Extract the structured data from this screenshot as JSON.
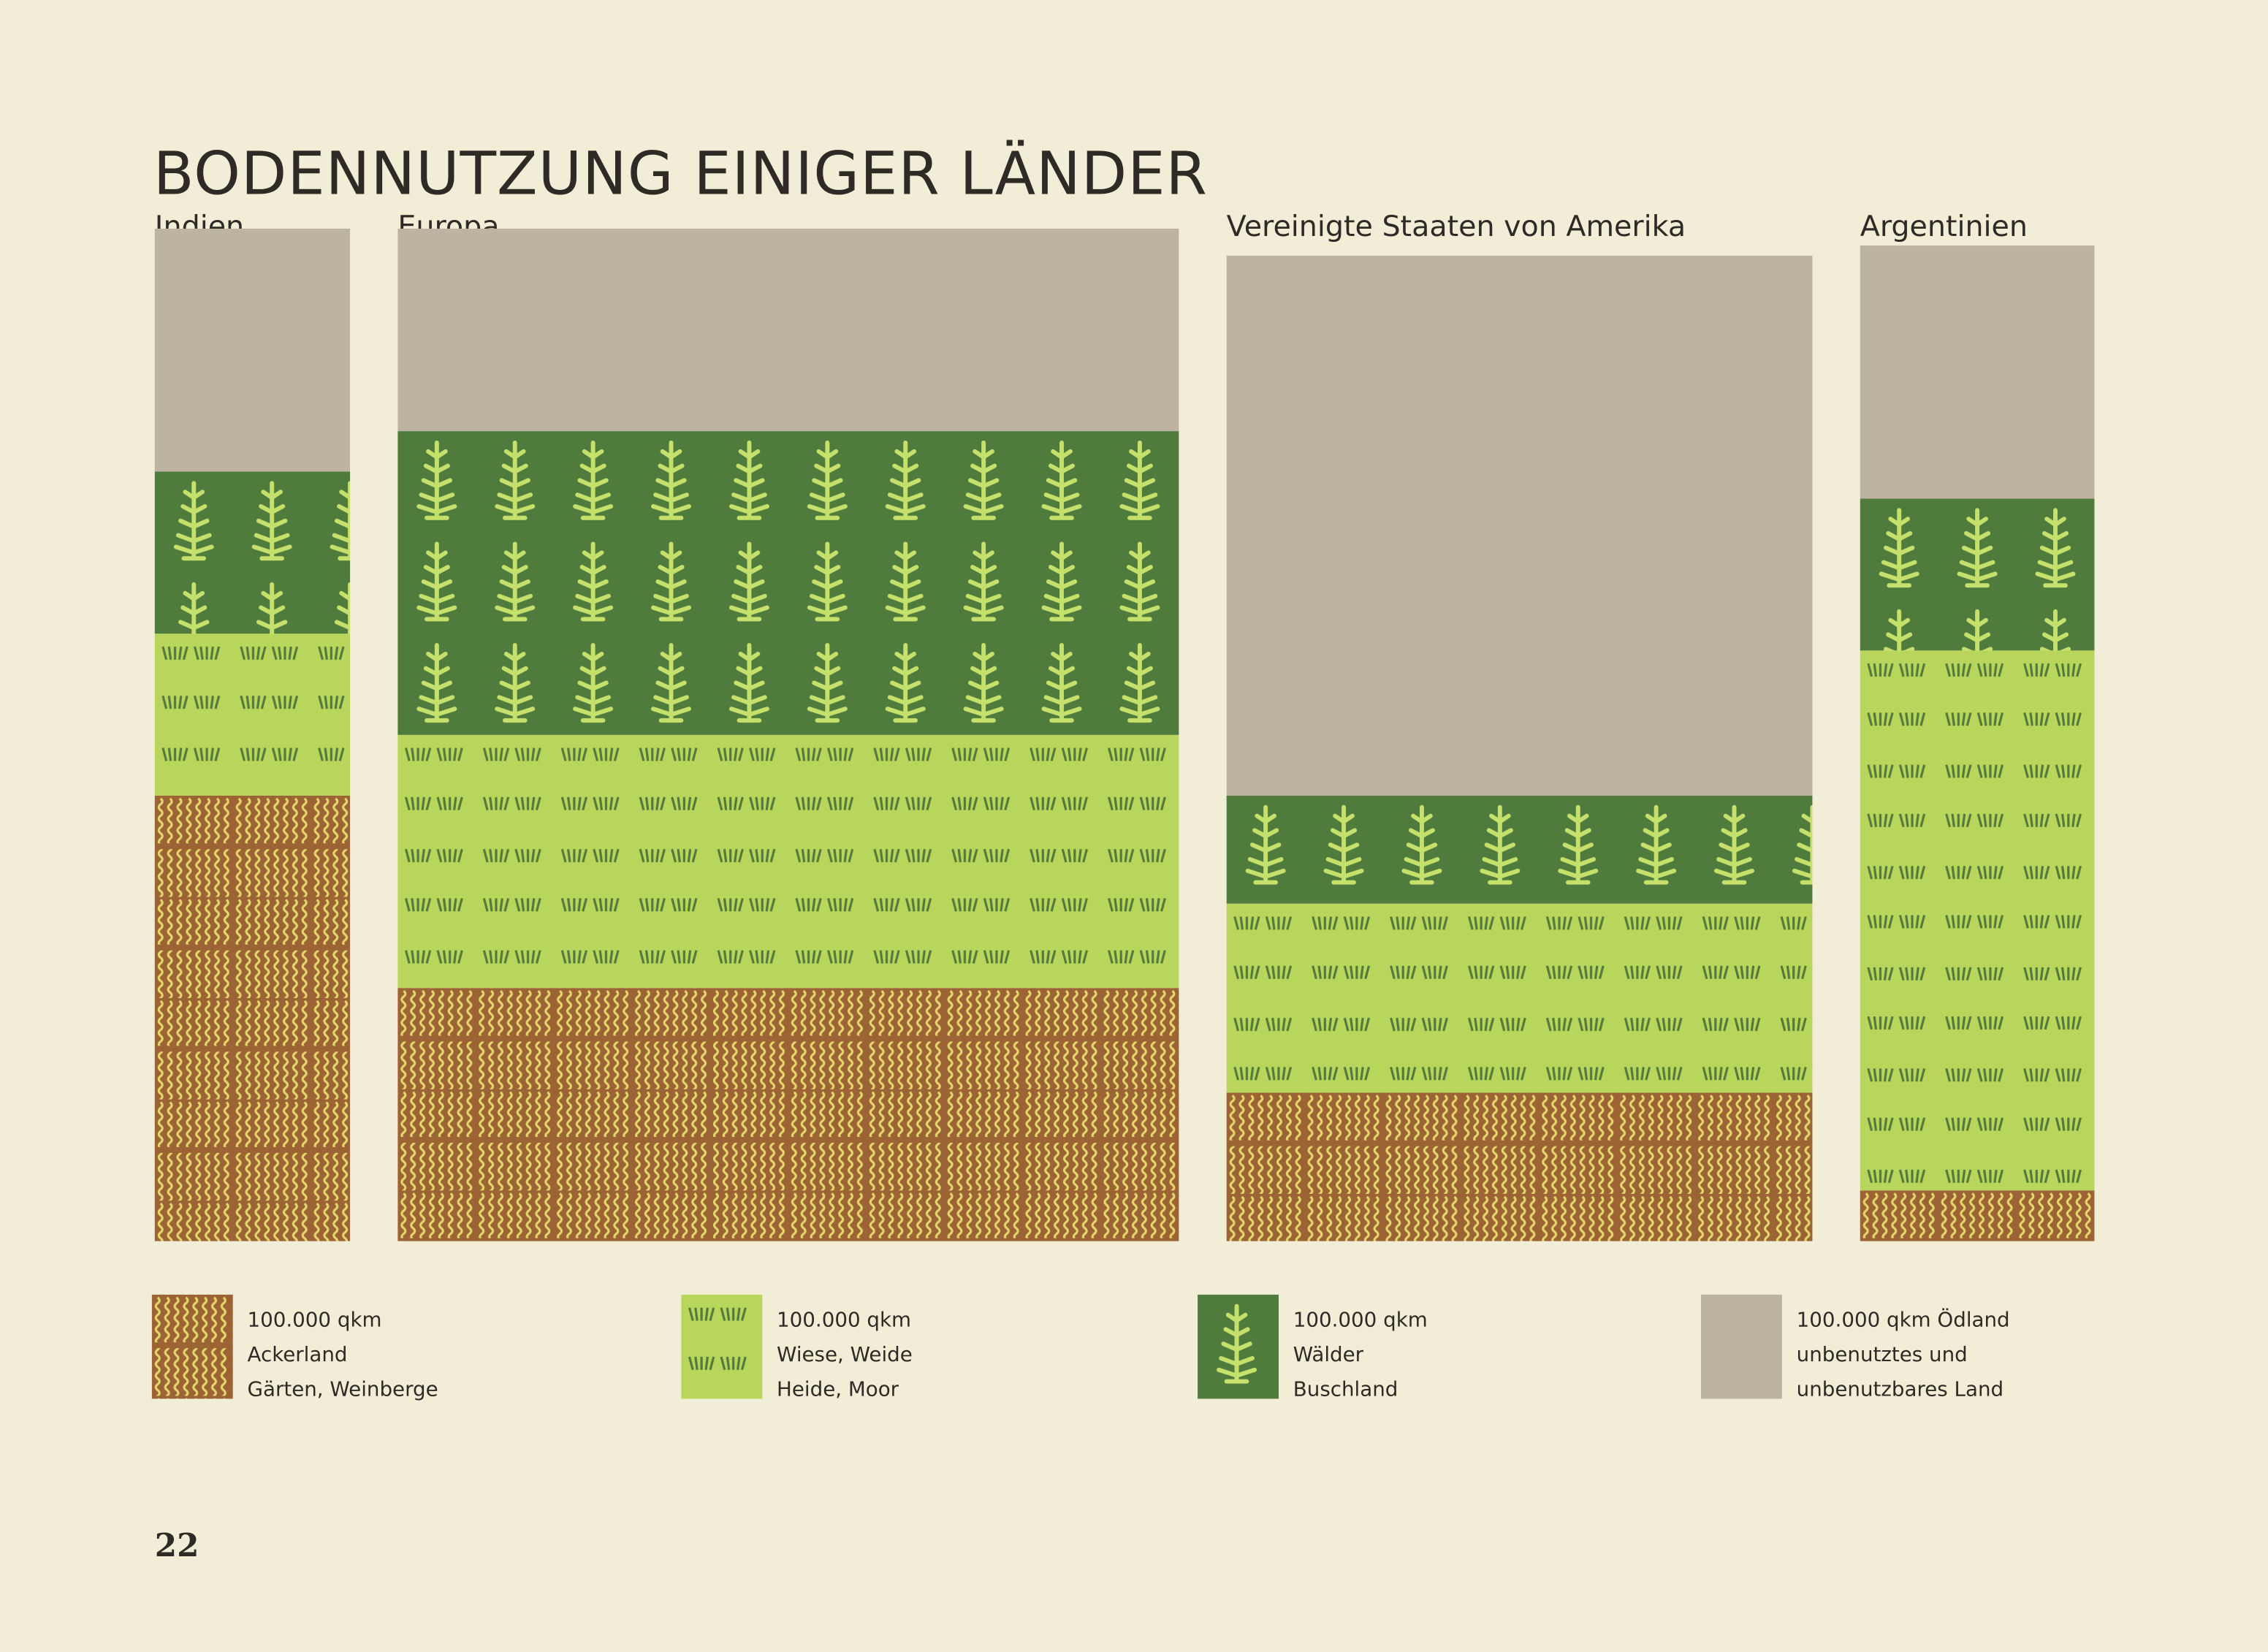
{
  "chart_data": {
    "type": "isotype",
    "title": "BODENNUTZUNG EINIGER LÄNDER",
    "series": [
      {
        "color": "#9c6335",
        "legend": [
          "100.000 qkm",
          "Ackerland",
          "Gärten, Weinberge"
        ]
      },
      {
        "color": "#b9d65c",
        "legend": [
          "100.000 qkm",
          "Wiese, Weide",
          "Heide, Moor"
        ]
      },
      {
        "color": "#4f7b3d",
        "legend": [
          "100.000 qkm",
          "Wälder",
          "Buschland"
        ]
      },
      {
        "color": "#bdb3a1",
        "legend": [
          "100.000 qkm Ödland",
          "unbenutztes und",
          "unbenutzbares Land"
        ]
      }
    ],
    "countries": [
      {
        "name": "Indien",
        "columns": 2.5,
        "values": [
          11,
          4,
          4,
          6
        ]
      },
      {
        "name": "Europa",
        "columns": 10,
        "values": [
          25,
          25,
          30,
          20
        ]
      },
      {
        "name": "Vereinigte Staaten von Amerika",
        "columns": 7.5,
        "values": [
          11,
          14,
          8,
          40
        ]
      },
      {
        "name": "Argentinien",
        "columns": 3,
        "values": [
          1.5,
          16,
          4.5,
          7.5
        ]
      }
    ]
  },
  "page_number": "22"
}
